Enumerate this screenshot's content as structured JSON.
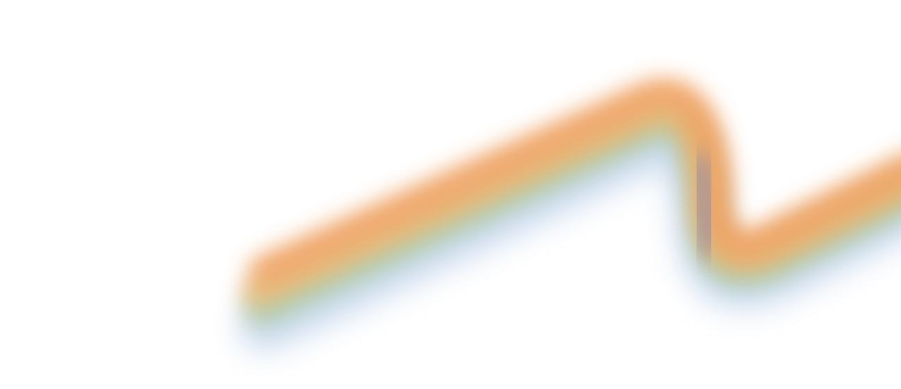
{
  "background": "#ffffff",
  "ribbon": {
    "colors": {
      "orange": "#f0a060",
      "amber": "#e8b870",
      "green": "#a8c8a0",
      "blue": "#b8cde8",
      "mauve": "#9a8ea0"
    }
  }
}
